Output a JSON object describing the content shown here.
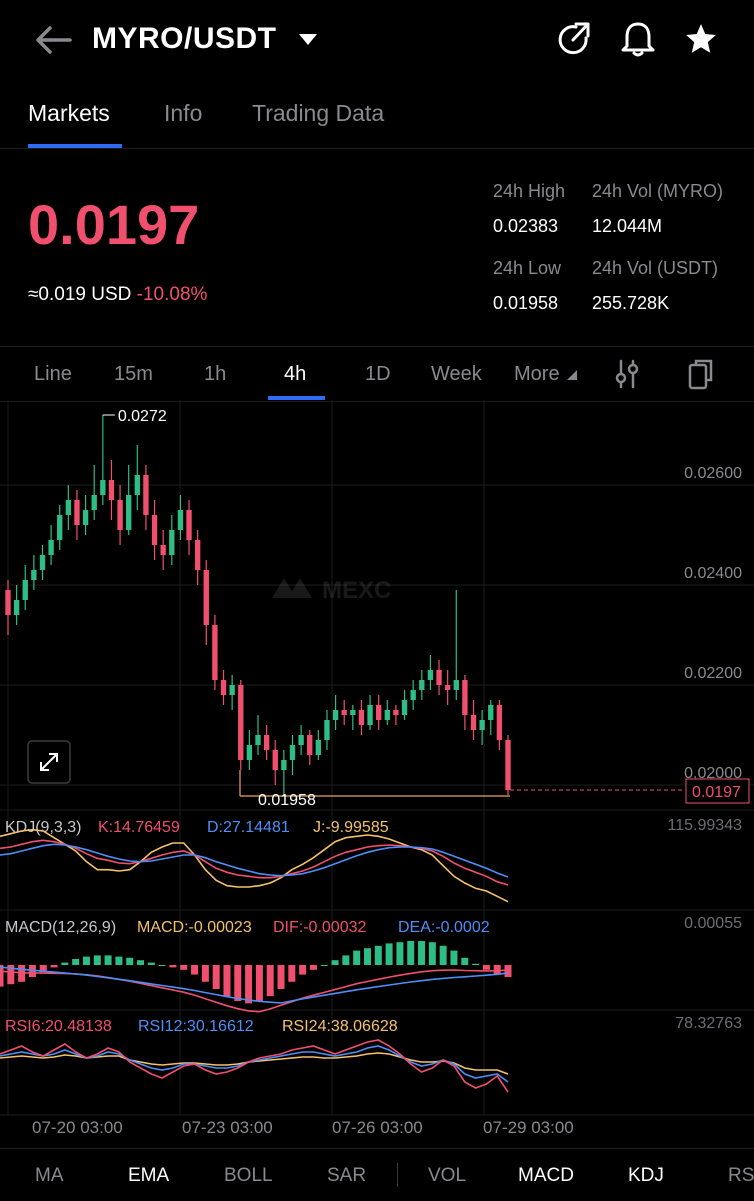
{
  "header": {
    "pair": "MYRO/USDT"
  },
  "tabs": [
    "Markets",
    "Info",
    "Trading Data"
  ],
  "ticker": {
    "last": "0.0197",
    "usd": "≈0.019 USD",
    "change": "-10.08%",
    "high_label": "24h High",
    "high": "0.02383",
    "low_label": "24h Low",
    "low": "0.01958",
    "vol_base_label": "24h Vol (MYRO)",
    "vol_base": "12.044M",
    "vol_quote_label": "24h Vol  (USDT)",
    "vol_quote": "255.728K"
  },
  "timeframes": [
    "Line",
    "15m",
    "1h",
    "4h",
    "1D",
    "Week",
    "More"
  ],
  "chart_data": {
    "type": "candlestick",
    "y_ticks": [
      "0.02600",
      "0.02400",
      "0.02200",
      "0.02000"
    ],
    "y_range": [
      0.0193,
      0.0275
    ],
    "x_ticks": [
      "07-20 03:00",
      "07-23 03:00",
      "07-26 03:00",
      "07-29 03:00"
    ],
    "high_annot": "0.0272",
    "low_annot": "0.01958",
    "current_price": "0.0197",
    "watermark": "MEXC",
    "candles": [
      {
        "o": 0.0237,
        "c": 0.0232,
        "h": 0.0239,
        "l": 0.0228
      },
      {
        "o": 0.0232,
        "c": 0.0235,
        "h": 0.0238,
        "l": 0.023
      },
      {
        "o": 0.0235,
        "c": 0.0239,
        "h": 0.0242,
        "l": 0.0233
      },
      {
        "o": 0.0239,
        "c": 0.0241,
        "h": 0.0244,
        "l": 0.0237
      },
      {
        "o": 0.0241,
        "c": 0.0244,
        "h": 0.0246,
        "l": 0.0239
      },
      {
        "o": 0.0244,
        "c": 0.0247,
        "h": 0.025,
        "l": 0.0242
      },
      {
        "o": 0.0247,
        "c": 0.0252,
        "h": 0.0254,
        "l": 0.0245
      },
      {
        "o": 0.0252,
        "c": 0.0255,
        "h": 0.0258,
        "l": 0.0249
      },
      {
        "o": 0.0255,
        "c": 0.025,
        "h": 0.0257,
        "l": 0.0247
      },
      {
        "o": 0.025,
        "c": 0.0253,
        "h": 0.0256,
        "l": 0.0248
      },
      {
        "o": 0.0253,
        "c": 0.0256,
        "h": 0.0262,
        "l": 0.0251
      },
      {
        "o": 0.0256,
        "c": 0.0259,
        "h": 0.0272,
        "l": 0.0254
      },
      {
        "o": 0.0259,
        "c": 0.0255,
        "h": 0.0263,
        "l": 0.0251
      },
      {
        "o": 0.0255,
        "c": 0.0249,
        "h": 0.0258,
        "l": 0.0246
      },
      {
        "o": 0.0249,
        "c": 0.0256,
        "h": 0.0262,
        "l": 0.0248
      },
      {
        "o": 0.0256,
        "c": 0.026,
        "h": 0.0266,
        "l": 0.0253
      },
      {
        "o": 0.026,
        "c": 0.0252,
        "h": 0.0262,
        "l": 0.0249
      },
      {
        "o": 0.0252,
        "c": 0.0246,
        "h": 0.0255,
        "l": 0.0243
      },
      {
        "o": 0.0246,
        "c": 0.0244,
        "h": 0.0249,
        "l": 0.0241
      },
      {
        "o": 0.0244,
        "c": 0.0249,
        "h": 0.0252,
        "l": 0.0242
      },
      {
        "o": 0.0249,
        "c": 0.0253,
        "h": 0.0256,
        "l": 0.0247
      },
      {
        "o": 0.0253,
        "c": 0.0247,
        "h": 0.0255,
        "l": 0.0244
      },
      {
        "o": 0.0247,
        "c": 0.0241,
        "h": 0.0249,
        "l": 0.0238
      },
      {
        "o": 0.0241,
        "c": 0.023,
        "h": 0.0243,
        "l": 0.0226
      },
      {
        "o": 0.023,
        "c": 0.0219,
        "h": 0.0232,
        "l": 0.0217
      },
      {
        "o": 0.0219,
        "c": 0.0216,
        "h": 0.0221,
        "l": 0.0214
      },
      {
        "o": 0.0216,
        "c": 0.0218,
        "h": 0.022,
        "l": 0.0213
      },
      {
        "o": 0.0218,
        "c": 0.0203,
        "h": 0.0219,
        "l": 0.0201
      },
      {
        "o": 0.0203,
        "c": 0.0206,
        "h": 0.0209,
        "l": 0.0201
      },
      {
        "o": 0.0206,
        "c": 0.0208,
        "h": 0.0212,
        "l": 0.0204
      },
      {
        "o": 0.0208,
        "c": 0.0205,
        "h": 0.021,
        "l": 0.0203
      },
      {
        "o": 0.0205,
        "c": 0.0201,
        "h": 0.0207,
        "l": 0.0198
      },
      {
        "o": 0.0201,
        "c": 0.0203,
        "h": 0.0205,
        "l": 0.0196
      },
      {
        "o": 0.0203,
        "c": 0.0206,
        "h": 0.0208,
        "l": 0.02
      },
      {
        "o": 0.0206,
        "c": 0.0208,
        "h": 0.021,
        "l": 0.0204
      },
      {
        "o": 0.0208,
        "c": 0.0204,
        "h": 0.0209,
        "l": 0.0202
      },
      {
        "o": 0.0204,
        "c": 0.0207,
        "h": 0.0209,
        "l": 0.0203
      },
      {
        "o": 0.0207,
        "c": 0.0211,
        "h": 0.0213,
        "l": 0.0205
      },
      {
        "o": 0.0211,
        "c": 0.0213,
        "h": 0.0216,
        "l": 0.0209
      },
      {
        "o": 0.0213,
        "c": 0.0212,
        "h": 0.0215,
        "l": 0.021
      },
      {
        "o": 0.0212,
        "c": 0.0213,
        "h": 0.0214,
        "l": 0.0209
      },
      {
        "o": 0.0213,
        "c": 0.021,
        "h": 0.0215,
        "l": 0.0208
      },
      {
        "o": 0.021,
        "c": 0.0214,
        "h": 0.0216,
        "l": 0.0209
      },
      {
        "o": 0.0214,
        "c": 0.0211,
        "h": 0.0216,
        "l": 0.0209
      },
      {
        "o": 0.0211,
        "c": 0.0213,
        "h": 0.0215,
        "l": 0.021
      },
      {
        "o": 0.0213,
        "c": 0.0212,
        "h": 0.0214,
        "l": 0.021
      },
      {
        "o": 0.0212,
        "c": 0.0215,
        "h": 0.0217,
        "l": 0.0211
      },
      {
        "o": 0.0215,
        "c": 0.0217,
        "h": 0.0219,
        "l": 0.0213
      },
      {
        "o": 0.0217,
        "c": 0.0219,
        "h": 0.0221,
        "l": 0.0215
      },
      {
        "o": 0.0219,
        "c": 0.0221,
        "h": 0.0224,
        "l": 0.0217
      },
      {
        "o": 0.0221,
        "c": 0.0218,
        "h": 0.0223,
        "l": 0.0216
      },
      {
        "o": 0.0218,
        "c": 0.0217,
        "h": 0.0221,
        "l": 0.0214
      },
      {
        "o": 0.0217,
        "c": 0.0219,
        "h": 0.0237,
        "l": 0.0215
      },
      {
        "o": 0.0219,
        "c": 0.0212,
        "h": 0.022,
        "l": 0.0209
      },
      {
        "o": 0.0212,
        "c": 0.0209,
        "h": 0.0215,
        "l": 0.0207
      },
      {
        "o": 0.0209,
        "c": 0.0211,
        "h": 0.0213,
        "l": 0.0206
      },
      {
        "o": 0.0211,
        "c": 0.0214,
        "h": 0.0215,
        "l": 0.0208
      },
      {
        "o": 0.0214,
        "c": 0.0207,
        "h": 0.0215,
        "l": 0.0205
      },
      {
        "o": 0.0207,
        "c": 0.0197,
        "h": 0.0208,
        "l": 0.0196
      }
    ]
  },
  "indicators": {
    "kdj": {
      "name": "KDJ(9,3,3)",
      "k": "K:14.76459",
      "d": "D:27.14481",
      "j": "J:-9.99585",
      "scale": "115.99343",
      "k_series": [
        70,
        72,
        76,
        80,
        82,
        80,
        76,
        70,
        62,
        55,
        52,
        48,
        47,
        50,
        55,
        60,
        64,
        66,
        60,
        50,
        40,
        34,
        30,
        28,
        26,
        26,
        28,
        32,
        36,
        42,
        50,
        58,
        64,
        68,
        72,
        74,
        75,
        74,
        72,
        70,
        66,
        58,
        48,
        40,
        34,
        28,
        20,
        15
      ],
      "d_series": [
        60,
        62,
        66,
        70,
        74,
        76,
        75,
        72,
        68,
        63,
        58,
        54,
        51,
        50,
        51,
        54,
        57,
        60,
        60,
        56,
        50,
        45,
        40,
        36,
        32,
        30,
        29,
        30,
        32,
        36,
        41,
        47,
        53,
        59,
        64,
        68,
        71,
        72,
        72,
        71,
        69,
        64,
        58,
        52,
        46,
        40,
        33,
        27
      ],
      "j_series": [
        88,
        92,
        96,
        98,
        96,
        86,
        76,
        66,
        50,
        38,
        38,
        36,
        38,
        50,
        64,
        72,
        78,
        78,
        60,
        38,
        22,
        14,
        12,
        12,
        14,
        18,
        26,
        38,
        46,
        56,
        68,
        80,
        86,
        88,
        90,
        88,
        84,
        78,
        72,
        68,
        60,
        44,
        28,
        18,
        10,
        6,
        -2,
        -10
      ]
    },
    "macd": {
      "name": "MACD(12,26,9)",
      "macd": "MACD:-0.00023",
      "dif": "DIF:-0.00032",
      "dea": "DEA:-0.0002",
      "scale": "0.00055",
      "hist": [
        -0.00018,
        -0.00016,
        -0.00014,
        -0.0001,
        -6e-05,
        -2e-05,
        2e-05,
        5e-05,
        7e-05,
        8e-05,
        8e-05,
        7e-05,
        6e-05,
        4e-05,
        2e-05,
        0,
        -2e-05,
        -4e-05,
        -8e-05,
        -0.00014,
        -0.0002,
        -0.00026,
        -0.0003,
        -0.00032,
        -0.0003,
        -0.00026,
        -0.0002,
        -0.00014,
        -8e-05,
        -4e-05,
        0,
        4e-05,
        8e-05,
        0.00012,
        0.00014,
        0.00016,
        0.00018,
        0.00019,
        0.0002,
        0.0002,
        0.00019,
        0.00016,
        0.00012,
        6e-05,
        1e-05,
        -4e-05,
        -8e-05,
        -0.0001
      ]
    },
    "rsi": {
      "name6": "RSI6:20.48138",
      "name12": "RSI12:30.16612",
      "name24": "RSI24:38.06628",
      "scale": "78.32763",
      "r6": [
        58,
        62,
        66,
        60,
        56,
        62,
        68,
        60,
        54,
        58,
        64,
        60,
        50,
        44,
        38,
        34,
        40,
        46,
        48,
        42,
        38,
        40,
        44,
        50,
        54,
        56,
        58,
        62,
        64,
        66,
        62,
        58,
        62,
        66,
        70,
        72,
        66,
        58,
        48,
        40,
        44,
        52,
        46,
        30,
        24,
        28,
        36,
        20
      ],
      "r12": [
        56,
        58,
        60,
        58,
        56,
        58,
        62,
        58,
        54,
        56,
        60,
        58,
        52,
        48,
        44,
        42,
        44,
        48,
        48,
        46,
        44,
        44,
        46,
        50,
        52,
        54,
        56,
        58,
        60,
        60,
        58,
        56,
        58,
        60,
        64,
        66,
        62,
        56,
        50,
        46,
        48,
        52,
        48,
        38,
        34,
        36,
        38,
        30
      ],
      "r24": [
        54,
        55,
        56,
        55,
        54,
        55,
        57,
        56,
        54,
        55,
        56,
        56,
        52,
        50,
        48,
        47,
        48,
        49,
        49,
        48,
        47,
        47,
        48,
        50,
        51,
        52,
        53,
        54,
        55,
        55,
        54,
        54,
        55,
        56,
        58,
        59,
        58,
        55,
        52,
        50,
        50,
        51,
        49,
        44,
        42,
        42,
        42,
        38
      ]
    }
  },
  "bottom_tabs": [
    "MA",
    "EMA",
    "BOLL",
    "SAR",
    "VOL",
    "MACD",
    "KDJ",
    "RS"
  ]
}
